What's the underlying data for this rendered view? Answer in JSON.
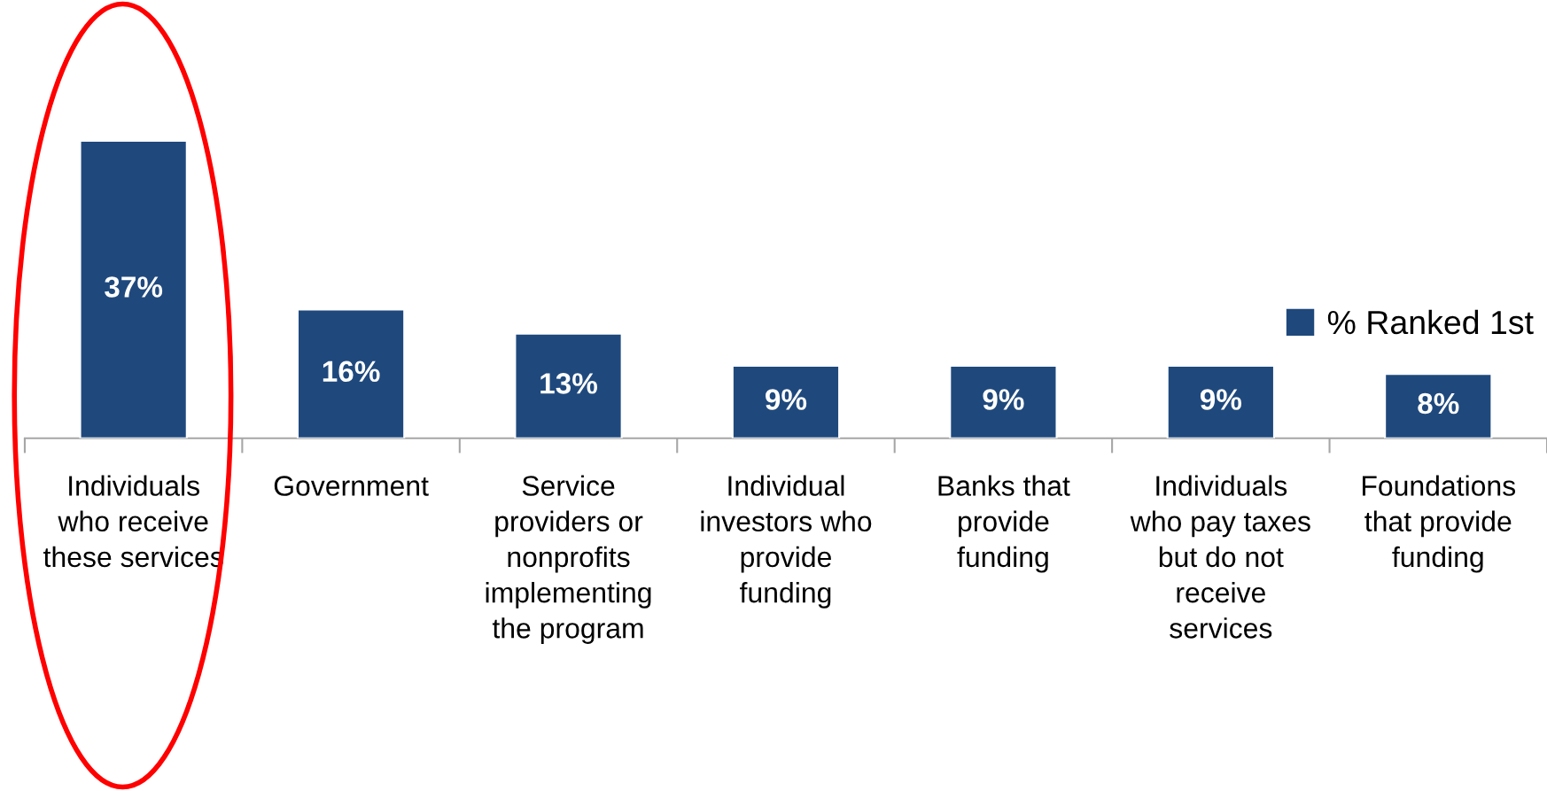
{
  "chart_data": {
    "type": "bar",
    "categories": [
      "Individuals\nwho receive\nthese services",
      "Government",
      "Service\nproviders or\nnonprofits\nimplementing\nthe program",
      "Individual\ninvestors who\nprovide\nfunding",
      "Banks that\nprovide\nfunding",
      "Individuals\nwho pay taxes\nbut do not\nreceive\nservices",
      "Foundations\nthat provide\nfunding"
    ],
    "series": [
      {
        "name": "% Ranked 1st",
        "color": "#1f497d",
        "values": [
          37,
          16,
          13,
          9,
          9,
          9,
          8
        ],
        "value_labels": [
          "37%",
          "16%",
          "13%",
          "9%",
          "9%",
          "9%",
          "8%"
        ]
      }
    ],
    "legend": "right",
    "grid": false
  }
}
